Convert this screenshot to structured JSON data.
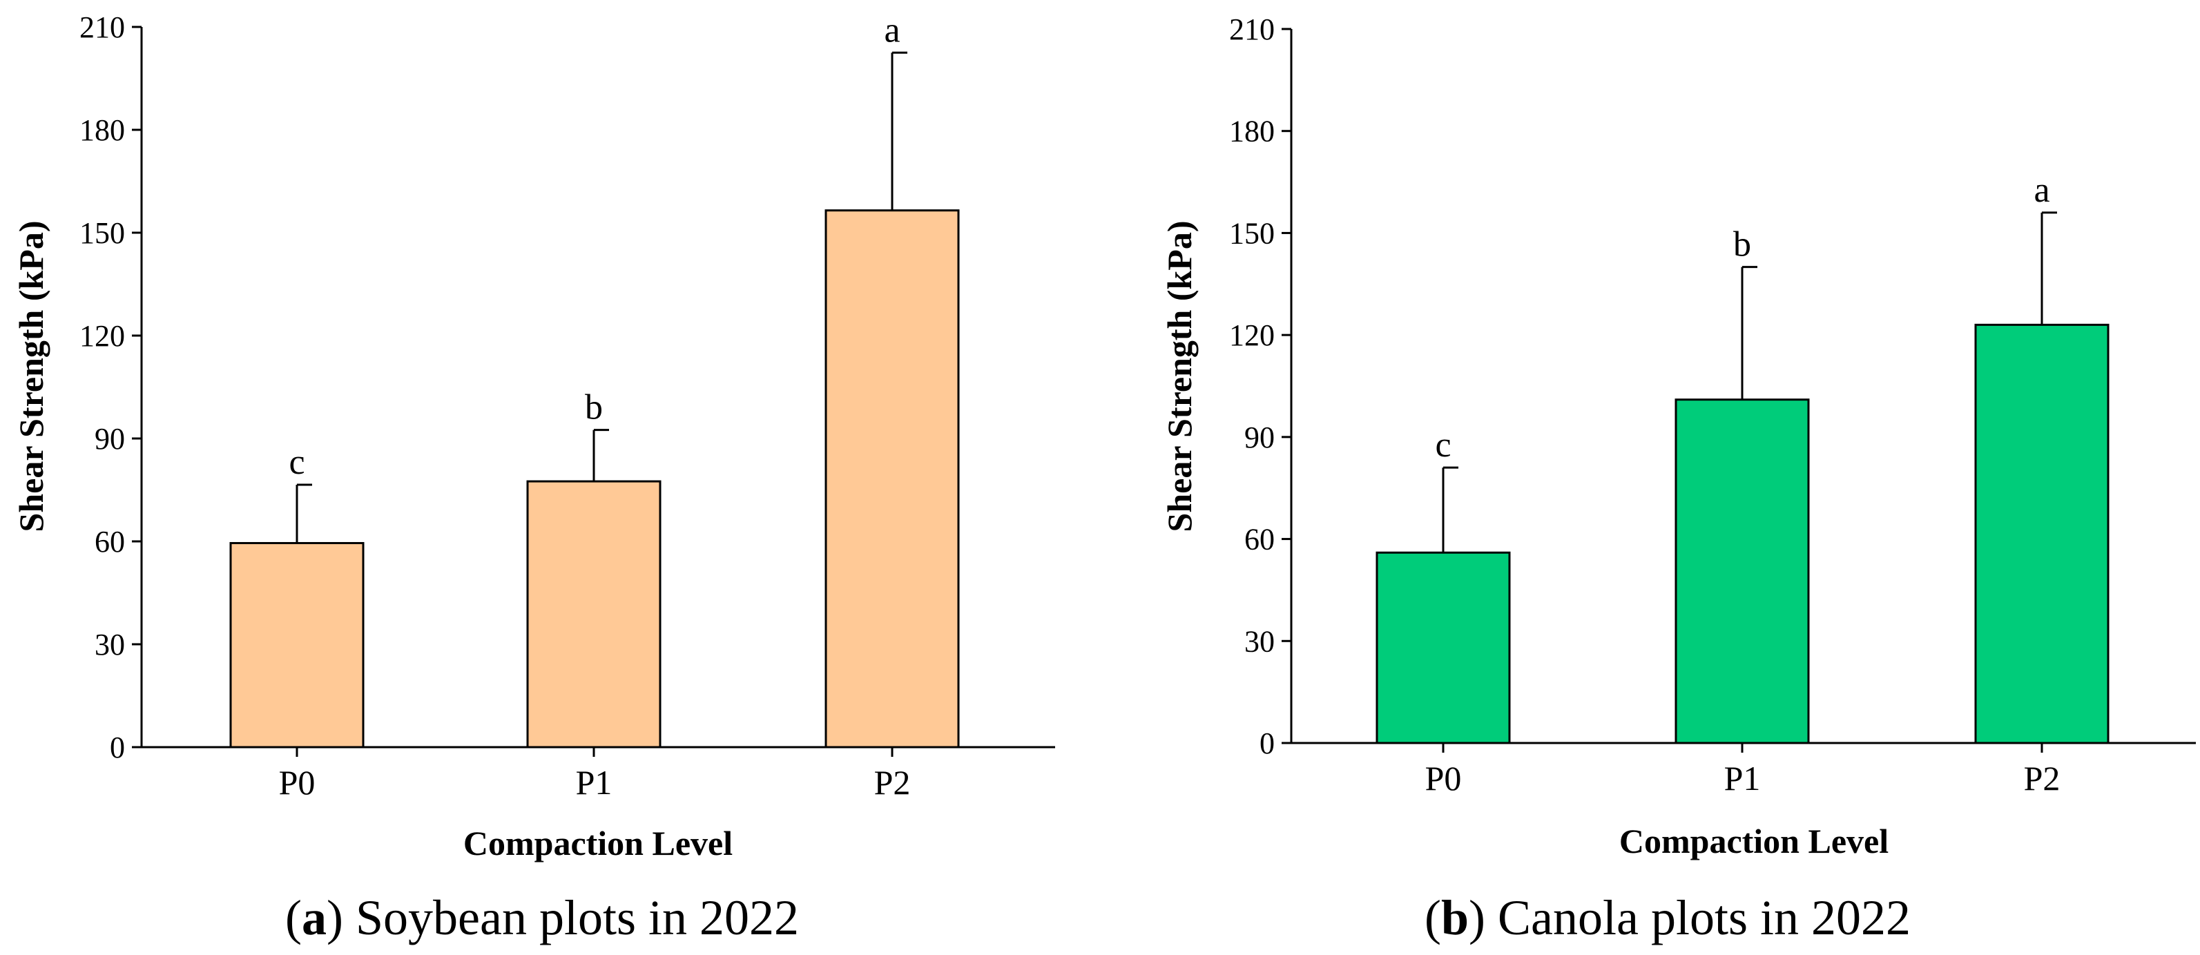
{
  "chart_data": [
    {
      "type": "bar",
      "panel_letter": "a",
      "caption": "Soybean plots in 2022",
      "categories": [
        "P0",
        "P1",
        "P2"
      ],
      "values": [
        59.5,
        77.5,
        156.5
      ],
      "errors": [
        17,
        15,
        46
      ],
      "significance": [
        "c",
        "b",
        "a"
      ],
      "xlabel": "Compaction Level",
      "ylabel": "Shear Strength (kPa)",
      "ylim": [
        0,
        210
      ],
      "yticks": [
        0,
        30,
        60,
        90,
        120,
        150,
        180,
        210
      ],
      "bar_color": "#FFC996",
      "grid": false
    },
    {
      "type": "bar",
      "panel_letter": "b",
      "caption": "Canola plots in 2022",
      "categories": [
        "P0",
        "P1",
        "P2"
      ],
      "values": [
        56,
        101,
        123
      ],
      "errors": [
        25,
        39,
        33
      ],
      "significance": [
        "c",
        "b",
        "a"
      ],
      "xlabel": "Compaction Level",
      "ylabel": "Shear Strength (kPa)",
      "ylim": [
        0,
        210
      ],
      "yticks": [
        0,
        30,
        60,
        90,
        120,
        150,
        180,
        210
      ],
      "bar_color": "#00CC7A",
      "grid": false
    }
  ]
}
